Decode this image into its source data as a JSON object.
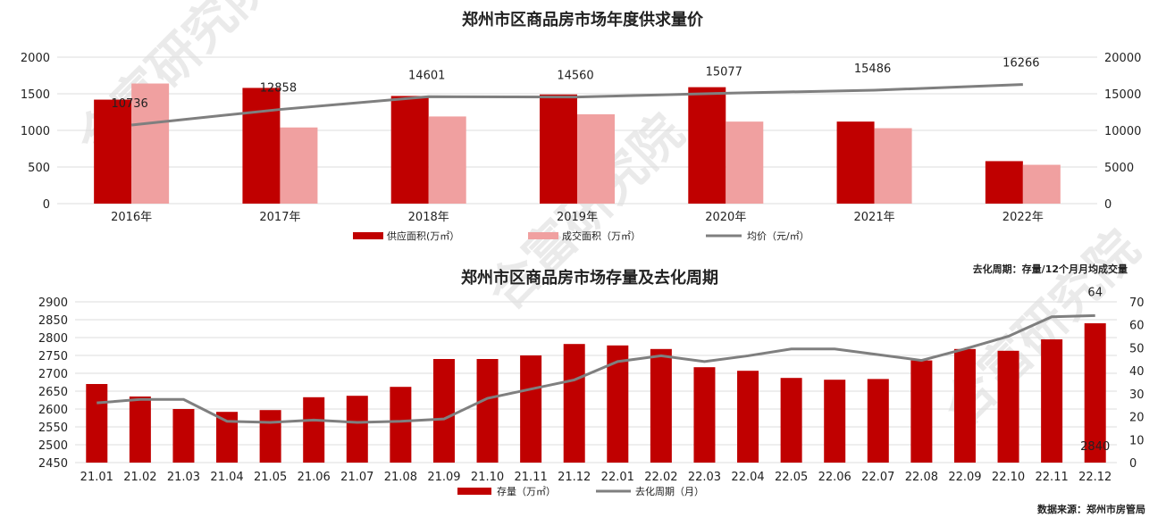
{
  "watermark": "合富研究院",
  "colors": {
    "supply": "#c00000",
    "deal": "#f0a0a0",
    "line": "#7f7f7f",
    "inventory": "#c00000"
  },
  "chart_data": [
    {
      "type": "bar",
      "title": "郑州市区商品房市场年度供求量价",
      "categories": [
        "2016年",
        "2017年",
        "2018年",
        "2019年",
        "2020年",
        "2021年",
        "2022年"
      ],
      "ylim": [
        0,
        2000
      ],
      "yticks": [
        "0",
        "500",
        "1000",
        "1500",
        "2000"
      ],
      "y2lim": [
        0,
        20000
      ],
      "y2ticks": [
        "0",
        "5000",
        "10000",
        "15000",
        "20000"
      ],
      "series": [
        {
          "name": "供应面积(万㎡）",
          "kind": "bar",
          "values": [
            1420,
            1580,
            1470,
            1490,
            1590,
            1120,
            580
          ]
        },
        {
          "name": "成交面积（万㎡）",
          "kind": "bar",
          "values": [
            1640,
            1040,
            1190,
            1220,
            1120,
            1030,
            530
          ]
        },
        {
          "name": "均价（元/㎡）",
          "kind": "line",
          "axis": "right",
          "values": [
            10736,
            12858,
            14601,
            14560,
            15077,
            15486,
            16266
          ]
        }
      ],
      "data_labels": [
        "10736",
        "12858",
        "14601",
        "14560",
        "15077",
        "15486",
        "16266"
      ],
      "legend": [
        "供应面积(万㎡）",
        "成交面积（万㎡）",
        "均价（元/㎡）"
      ]
    },
    {
      "type": "bar",
      "title": "郑州市区商品房市场存量及去化周期",
      "note": "去化周期：存量/12个月月均成交量",
      "categories": [
        "21.01",
        "21.02",
        "21.03",
        "21.04",
        "21.05",
        "21.06",
        "21.07",
        "21.08",
        "21.09",
        "21.10",
        "21.11",
        "21.12",
        "22.01",
        "22.02",
        "22.03",
        "22.04",
        "22.05",
        "22.06",
        "22.07",
        "22.08",
        "22.09",
        "22.10",
        "22.11",
        "22.12"
      ],
      "ylim": [
        2450,
        2900
      ],
      "yticks": [
        "2450",
        "2500",
        "2550",
        "2600",
        "2650",
        "2700",
        "2750",
        "2800",
        "2850",
        "2900"
      ],
      "y2lim": [
        0,
        70
      ],
      "y2ticks": [
        "0",
        "10",
        "20",
        "30",
        "40",
        "50",
        "60",
        "70"
      ],
      "series": [
        {
          "name": "存量（万㎡）",
          "kind": "bar",
          "values": [
            2670,
            2635,
            2600,
            2592,
            2597,
            2633,
            2637,
            2662,
            2740,
            2740,
            2750,
            2782,
            2778,
            2768,
            2717,
            2707,
            2687,
            2682,
            2684,
            2736,
            2768,
            2763,
            2795,
            2840
          ]
        },
        {
          "name": "去化周期（月）",
          "kind": "line",
          "axis": "right",
          "values": [
            26,
            27.5,
            27.5,
            18,
            17.5,
            18.5,
            17.5,
            18,
            19,
            28,
            32,
            36,
            44,
            46.5,
            44,
            46.5,
            49.5,
            49.5,
            47,
            44.5,
            49.5,
            55,
            63.5,
            64
          ]
        }
      ],
      "data_labels": {
        "last_bar": "2840",
        "last_line": "64"
      },
      "legend": [
        "存量（万㎡）",
        "去化周期（月）"
      ]
    }
  ],
  "source": "数据来源：郑州市房管局"
}
